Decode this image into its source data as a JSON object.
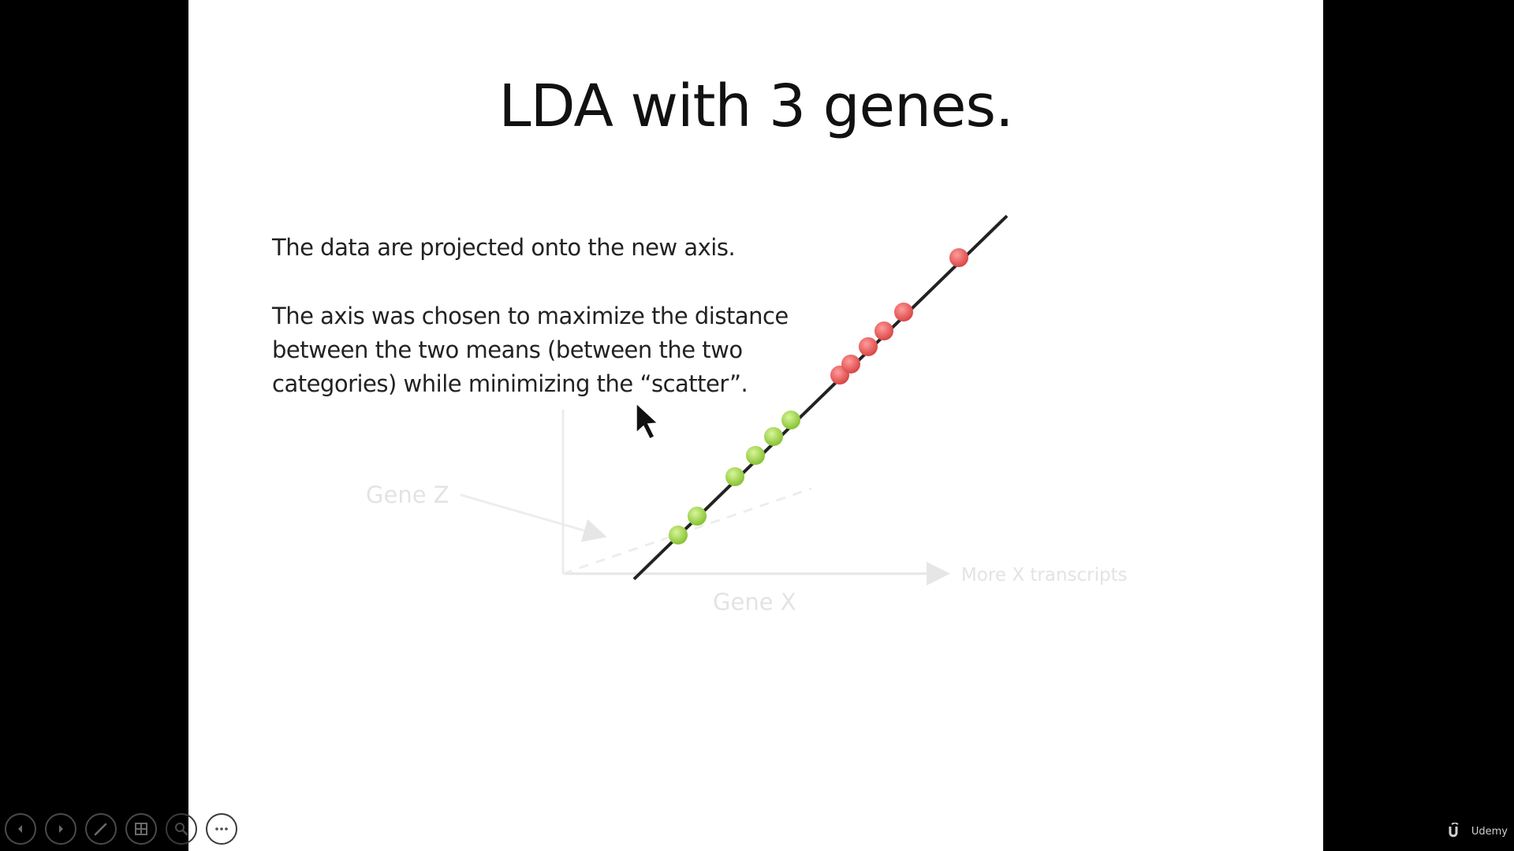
{
  "slide": {
    "title": "LDA with 3 genes.",
    "paragraph1": "The data are projected onto the new axis.",
    "paragraph2": "The axis was chosen to maximize the distance\nbetween the two means (between the two\ncategories) while minimizing the “scatter”."
  },
  "figure": {
    "gene_z_label": "Gene Z",
    "gene_x_label": "Gene X",
    "x_arrow_label": "More X transcripts",
    "colors": {
      "projection_axis": "#222222",
      "green_category": "#9fd64a",
      "red_category": "#e85a5a",
      "faint_axes": "#e6e6e6"
    }
  },
  "controls": [
    {
      "name": "previous-slide-button",
      "icon": "chevron-left-icon"
    },
    {
      "name": "next-slide-button",
      "icon": "chevron-right-icon"
    },
    {
      "name": "pen-tool-button",
      "icon": "pen-icon"
    },
    {
      "name": "see-all-slides-button",
      "icon": "slides-grid-icon"
    },
    {
      "name": "zoom-button",
      "icon": "magnifier-icon"
    },
    {
      "name": "more-options-button",
      "icon": "ellipsis-icon"
    }
  ],
  "brand": {
    "name": "Udemy"
  }
}
